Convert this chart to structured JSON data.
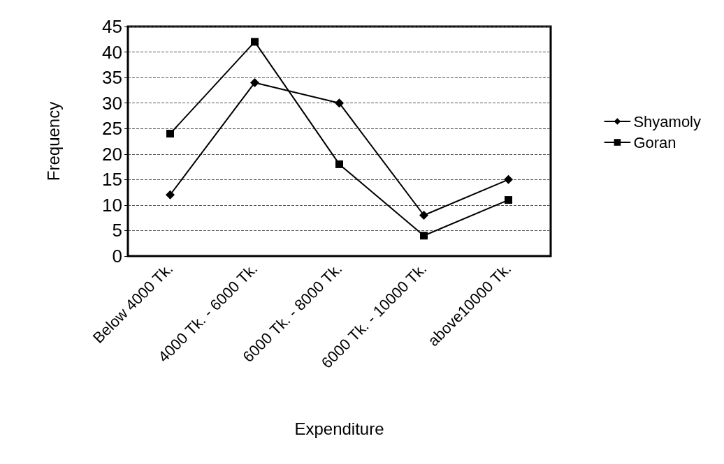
{
  "chart_data": {
    "type": "line",
    "xlabel": "Expenditure",
    "ylabel": "Frequency",
    "categories": [
      "Below 4000 Tk.",
      "4000 Tk. - 6000 Tk.",
      "6000 Tk. - 8000 Tk.",
      "6000 Tk. - 10000 Tk.",
      "above10000 Tk."
    ],
    "series": [
      {
        "name": "Shyamoly",
        "color": "#000000",
        "marker": "diamond",
        "values": [
          12,
          34,
          30,
          8,
          15
        ]
      },
      {
        "name": "Goran",
        "color": "#000000",
        "marker": "square",
        "values": [
          24,
          42,
          18,
          4,
          11
        ]
      }
    ],
    "ylim": [
      0,
      45
    ],
    "yticks": [
      0,
      5,
      10,
      15,
      20,
      25,
      30,
      35,
      40,
      45
    ],
    "grid": "y",
    "legend": "right",
    "line_style": "solid"
  }
}
